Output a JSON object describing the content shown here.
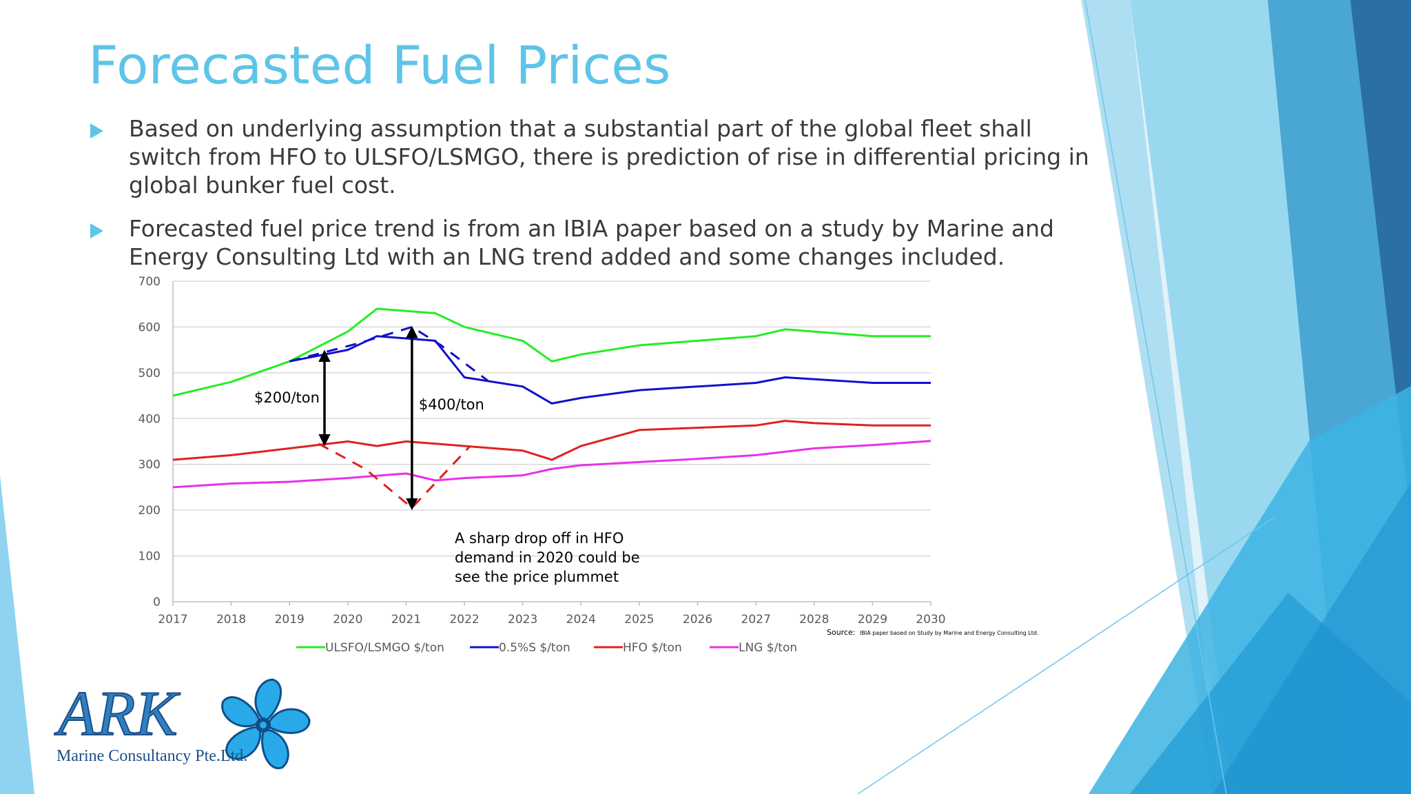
{
  "slide": {
    "title": "Forecasted Fuel Prices",
    "bullets": [
      "Based on underlying assumption that a substantial part of the global fleet shall switch from HFO to ULSFO/LSMGO, there is prediction of rise in differential pricing in global bunker fuel cost.",
      "Forecasted fuel price trend is from an IBIA paper based on a study by Marine and Energy Consulting Ltd with an LNG trend added and some changes included."
    ],
    "accent_color": "#5ec4e8",
    "bullet_icon": "triangle-right-icon"
  },
  "chart_data": {
    "type": "line",
    "title": "",
    "xlabel": "",
    "ylabel": "",
    "xlim": [
      2017,
      2030
    ],
    "ylim": [
      0,
      700
    ],
    "x_ticks": [
      2017,
      2018,
      2019,
      2020,
      2021,
      2022,
      2023,
      2024,
      2025,
      2026,
      2027,
      2028,
      2029,
      2030
    ],
    "y_ticks": [
      0,
      100,
      200,
      300,
      400,
      500,
      600,
      700
    ],
    "grid": "horizontal",
    "legend": "bottom",
    "series": [
      {
        "name": "ULSFO/LSMGO $/ton",
        "color": "#22ee22",
        "points": [
          [
            2017,
            450
          ],
          [
            2018,
            480
          ],
          [
            2019,
            525
          ],
          [
            2020,
            590
          ],
          [
            2020.5,
            640
          ],
          [
            2021.5,
            630
          ],
          [
            2022,
            600
          ],
          [
            2023,
            570
          ],
          [
            2023.5,
            525
          ],
          [
            2024,
            540
          ],
          [
            2025,
            560
          ],
          [
            2026,
            570
          ],
          [
            2027,
            580
          ],
          [
            2027.5,
            595
          ],
          [
            2029,
            580
          ],
          [
            2030,
            580
          ]
        ]
      },
      {
        "name": "0.5%S $/ton",
        "color": "#1010cc",
        "points": [
          [
            2019,
            525
          ],
          [
            2020,
            550
          ],
          [
            2020.5,
            580
          ],
          [
            2021,
            575
          ],
          [
            2021.5,
            570
          ],
          [
            2022,
            490
          ],
          [
            2023,
            470
          ],
          [
            2023.5,
            433
          ],
          [
            2024,
            445
          ],
          [
            2025,
            462
          ],
          [
            2026,
            470
          ],
          [
            2027,
            478
          ],
          [
            2027.5,
            490
          ],
          [
            2029,
            478
          ],
          [
            2030,
            478
          ]
        ]
      },
      {
        "name": "HFO $/ton",
        "color": "#e02020",
        "points": [
          [
            2017,
            310
          ],
          [
            2018,
            320
          ],
          [
            2019,
            335
          ],
          [
            2020,
            350
          ],
          [
            2020.5,
            340
          ],
          [
            2021,
            350
          ],
          [
            2021.5,
            345
          ],
          [
            2022,
            340
          ],
          [
            2023,
            330
          ],
          [
            2023.5,
            310
          ],
          [
            2024,
            340
          ],
          [
            2025,
            375
          ],
          [
            2026,
            380
          ],
          [
            2027,
            385
          ],
          [
            2027.5,
            395
          ],
          [
            2028,
            390
          ],
          [
            2029,
            385
          ],
          [
            2030,
            385
          ]
        ]
      },
      {
        "name": "LNG $/ton",
        "color": "#e830e8",
        "points": [
          [
            2017,
            250
          ],
          [
            2018,
            258
          ],
          [
            2019,
            262
          ],
          [
            2020,
            270
          ],
          [
            2020.5,
            275
          ],
          [
            2021,
            280
          ],
          [
            2021.5,
            265
          ],
          [
            2022,
            270
          ],
          [
            2023,
            276
          ],
          [
            2023.5,
            290
          ],
          [
            2024,
            298
          ],
          [
            2025,
            305
          ],
          [
            2026,
            312
          ],
          [
            2027,
            320
          ],
          [
            2028,
            335
          ],
          [
            2029,
            342
          ],
          [
            2030,
            351
          ]
        ]
      }
    ],
    "dashed_overlays": [
      {
        "color": "#1010cc",
        "points": [
          [
            2019,
            525
          ],
          [
            2020.2,
            565
          ],
          [
            2021.1,
            600
          ],
          [
            2021.6,
            560
          ],
          [
            2022.4,
            483
          ]
        ]
      },
      {
        "color": "#e02020",
        "points": [
          [
            2019.5,
            345
          ],
          [
            2020.3,
            290
          ],
          [
            2021.1,
            205
          ],
          [
            2022.1,
            340
          ]
        ]
      }
    ],
    "arrows": [
      {
        "x": 2019.6,
        "from": 345,
        "to": 545,
        "label": "$200/ton"
      },
      {
        "x": 2021.1,
        "from": 205,
        "to": 597,
        "label": "$400/ton"
      }
    ],
    "annotation": [
      "A sharp drop off in HFO",
      "demand in 2020  could be",
      "see the price plummet"
    ],
    "source_label": "Source:",
    "source_text": "IBIA paper based on Study by Marine and Energy Consulting Ltd."
  },
  "logo": {
    "brand": "ARK",
    "subtitle": "Marine Consultancy Pte.Ltd.",
    "icon": "propeller-icon"
  }
}
